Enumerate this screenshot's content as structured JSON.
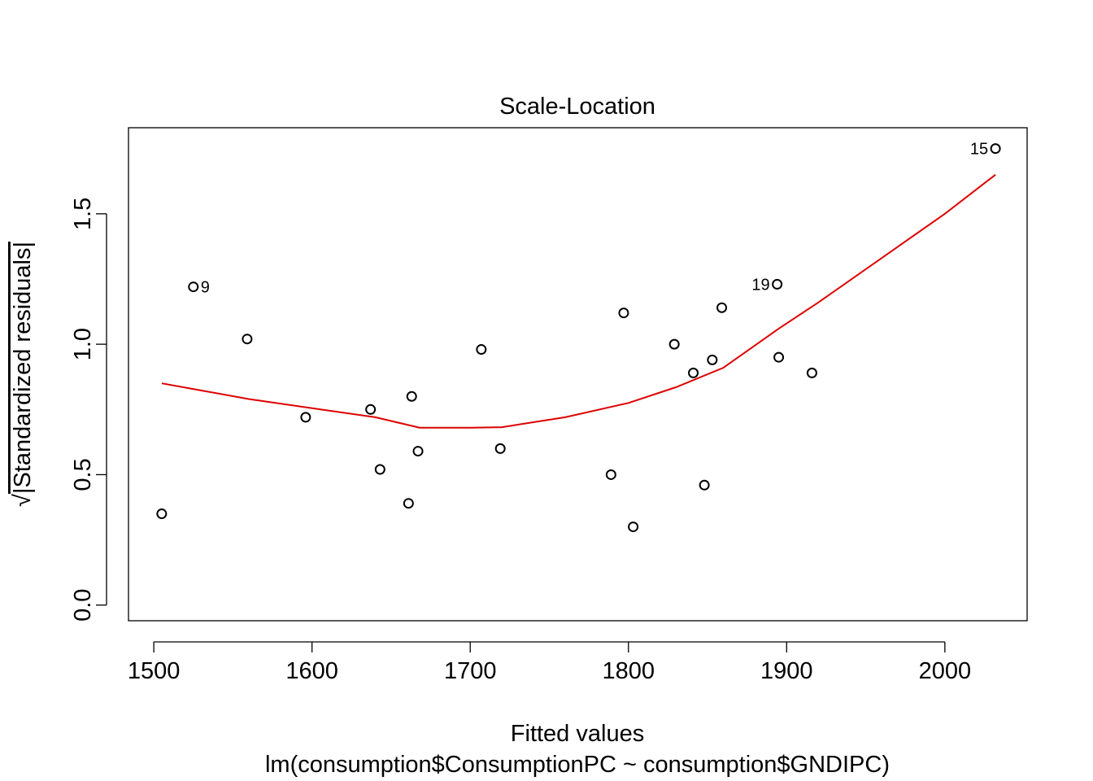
{
  "chart_data": {
    "type": "scatter",
    "title": "Scale-Location",
    "xlabel": "Fitted values",
    "subtitle": "lm(consumption$ConsumptionPC ~ consumption$GNDIPC)",
    "ylabel_radical": "√",
    "ylabel": "|Standardized residuals|",
    "xlim": [
      1484,
      2052
    ],
    "ylim": [
      -0.06,
      1.83
    ],
    "xticks": [
      1500,
      1600,
      1700,
      1800,
      1900,
      2000
    ],
    "yticks": [
      0.0,
      0.5,
      1.0,
      1.5
    ],
    "ytick_labels": [
      "0.0",
      "0.5",
      "1.0",
      "1.5"
    ],
    "grid": false,
    "points": [
      {
        "x": 1505,
        "y": 0.35
      },
      {
        "x": 1525,
        "y": 1.22,
        "label": "9"
      },
      {
        "x": 1559,
        "y": 1.02
      },
      {
        "x": 1596,
        "y": 0.72
      },
      {
        "x": 1637,
        "y": 0.75
      },
      {
        "x": 1643,
        "y": 0.52
      },
      {
        "x": 1661,
        "y": 0.39
      },
      {
        "x": 1663,
        "y": 0.8
      },
      {
        "x": 1667,
        "y": 0.59
      },
      {
        "x": 1707,
        "y": 0.98
      },
      {
        "x": 1719,
        "y": 0.6
      },
      {
        "x": 1789,
        "y": 0.5
      },
      {
        "x": 1797,
        "y": 1.12
      },
      {
        "x": 1803,
        "y": 0.3
      },
      {
        "x": 1829,
        "y": 1.0
      },
      {
        "x": 1841,
        "y": 0.89
      },
      {
        "x": 1848,
        "y": 0.46
      },
      {
        "x": 1853,
        "y": 0.94
      },
      {
        "x": 1859,
        "y": 1.14
      },
      {
        "x": 1894,
        "y": 1.23,
        "label": "19"
      },
      {
        "x": 1895,
        "y": 0.95
      },
      {
        "x": 1916,
        "y": 0.89
      },
      {
        "x": 2032,
        "y": 1.75,
        "label": "15"
      }
    ],
    "smoother": {
      "color": "#dd0000",
      "x": [
        1505,
        1560,
        1600,
        1640,
        1668,
        1700,
        1720,
        1760,
        1800,
        1830,
        1860,
        1895,
        1920,
        1960,
        2000,
        2032
      ],
      "y": [
        0.85,
        0.79,
        0.755,
        0.72,
        0.68,
        0.68,
        0.682,
        0.72,
        0.775,
        0.835,
        0.91,
        1.06,
        1.16,
        1.33,
        1.5,
        1.65
      ]
    }
  }
}
